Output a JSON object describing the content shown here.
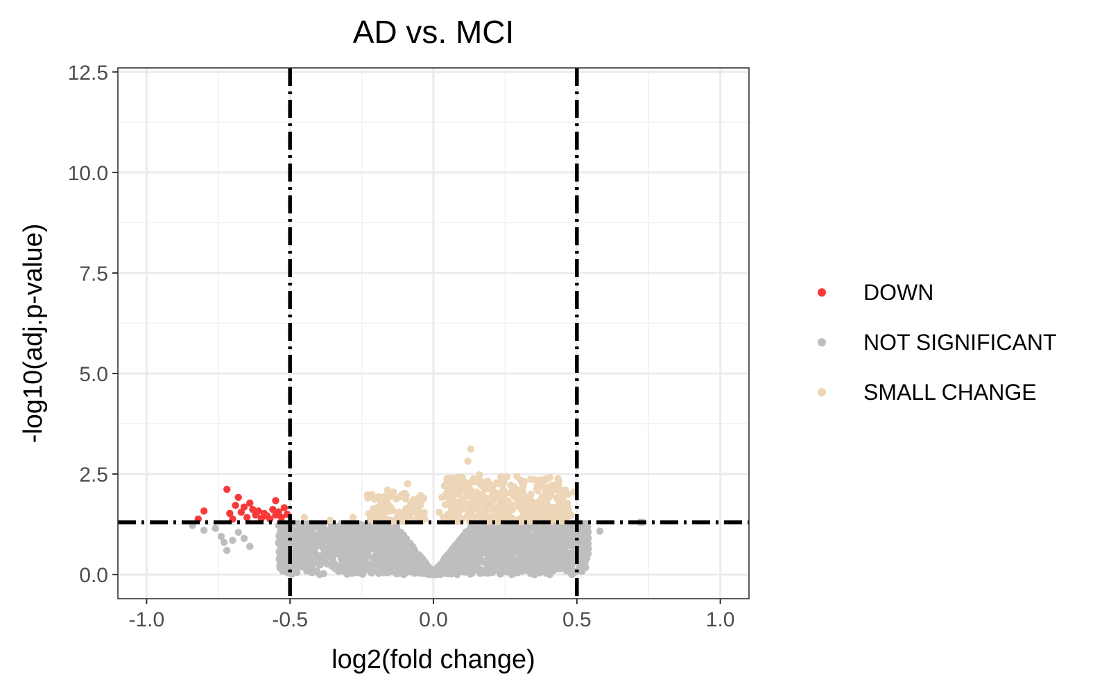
{
  "chart_data": {
    "type": "scatter",
    "title": "AD vs. MCI",
    "xlabel": "log2(fold change)",
    "ylabel": "-log10(adj.p-value)",
    "xlim": [
      -1.1,
      1.1
    ],
    "ylim": [
      -0.6,
      12.6
    ],
    "x_ticks": [
      {
        "value": -1.0,
        "label": "-1.0"
      },
      {
        "value": -0.5,
        "label": "-0.5"
      },
      {
        "value": 0.0,
        "label": "0.0"
      },
      {
        "value": 0.5,
        "label": "0.5"
      },
      {
        "value": 1.0,
        "label": "1.0"
      }
    ],
    "y_ticks": [
      {
        "value": 0.0,
        "label": "0.0"
      },
      {
        "value": 2.5,
        "label": "2.5"
      },
      {
        "value": 5.0,
        "label": "5.0"
      },
      {
        "value": 7.5,
        "label": "7.5"
      },
      {
        "value": 10.0,
        "label": "10.0"
      },
      {
        "value": 12.5,
        "label": "12.5"
      }
    ],
    "grid": true,
    "legend_position": "right",
    "thresholds": {
      "vertical_x": [
        -0.5,
        0.5
      ],
      "horizontal_y": 1.3
    },
    "series": [
      {
        "name": "DOWN",
        "color": "#f8393a",
        "points": [
          [
            -0.82,
            1.38
          ],
          [
            -0.8,
            1.58
          ],
          [
            -0.72,
            2.12
          ],
          [
            -0.71,
            1.52
          ],
          [
            -0.7,
            1.38
          ],
          [
            -0.69,
            1.72
          ],
          [
            -0.68,
            1.92
          ],
          [
            -0.67,
            1.55
          ],
          [
            -0.66,
            1.68
          ],
          [
            -0.65,
            1.42
          ],
          [
            -0.64,
            1.78
          ],
          [
            -0.63,
            1.62
          ],
          [
            -0.62,
            1.48
          ],
          [
            -0.61,
            1.58
          ],
          [
            -0.6,
            1.4
          ],
          [
            -0.59,
            1.52
          ],
          [
            -0.58,
            1.46
          ],
          [
            -0.57,
            1.38
          ],
          [
            -0.56,
            1.62
          ],
          [
            -0.55,
            1.84
          ],
          [
            -0.55,
            1.48
          ],
          [
            -0.54,
            1.56
          ],
          [
            -0.53,
            1.42
          ],
          [
            -0.52,
            1.66
          ],
          [
            -0.51,
            1.5
          ]
        ]
      },
      {
        "name": "NOT SIGNIFICANT",
        "color": "#bebebe",
        "points": []
      },
      {
        "name": "SMALL CHANGE",
        "color": "#edd5b7",
        "points": [
          [
            -0.45,
            1.42
          ],
          [
            -0.36,
            1.35
          ],
          [
            -0.28,
            1.42
          ],
          [
            -0.23,
            1.98
          ],
          [
            -0.22,
            1.5
          ],
          [
            -0.2,
            1.65
          ],
          [
            -0.18,
            1.78
          ],
          [
            -0.17,
            1.95
          ],
          [
            -0.16,
            2.1
          ],
          [
            -0.15,
            1.62
          ],
          [
            -0.14,
            2.05
          ],
          [
            -0.13,
            1.88
          ],
          [
            -0.12,
            1.55
          ],
          [
            -0.11,
            1.96
          ],
          [
            -0.1,
            2.02
          ],
          [
            -0.09,
            2.26
          ],
          [
            -0.08,
            1.72
          ],
          [
            -0.07,
            1.86
          ],
          [
            -0.06,
            1.6
          ],
          [
            -0.05,
            1.48
          ],
          [
            -0.04,
            1.44
          ],
          [
            0.02,
            1.55
          ],
          [
            0.03,
            1.92
          ],
          [
            0.05,
            2.15
          ],
          [
            0.06,
            2.35
          ],
          [
            0.07,
            1.85
          ],
          [
            0.08,
            2.25
          ],
          [
            0.09,
            2.05
          ],
          [
            0.1,
            2.42
          ],
          [
            0.11,
            2.3
          ],
          [
            0.12,
            2.82
          ],
          [
            0.13,
            3.12
          ],
          [
            0.14,
            2.38
          ],
          [
            0.15,
            2.05
          ],
          [
            0.16,
            2.48
          ],
          [
            0.17,
            2.2
          ],
          [
            0.18,
            1.85
          ],
          [
            0.19,
            2.32
          ],
          [
            0.2,
            2.12
          ],
          [
            0.21,
            2.0
          ],
          [
            0.22,
            2.28
          ],
          [
            0.23,
            1.9
          ],
          [
            0.24,
            2.18
          ],
          [
            0.25,
            2.05
          ],
          [
            0.26,
            1.82
          ],
          [
            0.27,
            2.22
          ],
          [
            0.28,
            1.95
          ],
          [
            0.29,
            2.1
          ],
          [
            0.3,
            1.78
          ],
          [
            0.31,
            2.02
          ],
          [
            0.32,
            1.88
          ],
          [
            0.33,
            1.7
          ],
          [
            0.34,
            2.0
          ],
          [
            0.35,
            1.62
          ],
          [
            0.36,
            2.12
          ],
          [
            0.37,
            1.8
          ],
          [
            0.38,
            2.28
          ],
          [
            0.39,
            1.9
          ],
          [
            0.4,
            1.7
          ],
          [
            0.41,
            1.55
          ],
          [
            0.44,
            2.0
          ],
          [
            0.45,
            1.5
          ],
          [
            0.46,
            2.1
          ],
          [
            0.47,
            1.62
          ],
          [
            0.48,
            1.48
          ],
          [
            0.49,
            2.05
          ],
          [
            0.44,
            1.6
          ],
          [
            0.38,
            1.52
          ],
          [
            0.25,
            1.48
          ],
          [
            0.15,
            1.45
          ]
        ]
      }
    ]
  }
}
